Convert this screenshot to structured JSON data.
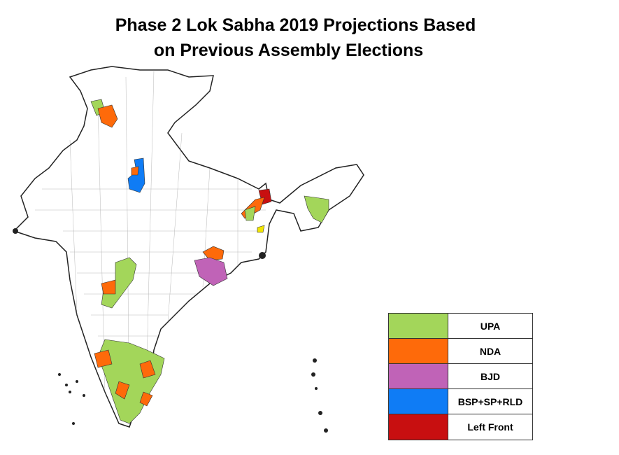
{
  "title": {
    "line1": "Phase 2 Lok Sabha 2019 Projections Based",
    "line2": "on Previous Assembly Elections"
  },
  "legend": [
    {
      "label": "UPA",
      "color": "#a3d65a"
    },
    {
      "label": "NDA",
      "color": "#fe6a0a"
    },
    {
      "label": "BJD",
      "color": "#c063b7"
    },
    {
      "label": "BSP+SP+RLD",
      "color": "#0f7cf5"
    },
    {
      "label": "Left Front",
      "color": "#c80f10"
    }
  ],
  "map": {
    "region": "India",
    "base_color": "#ffffff",
    "border_color": "#333333",
    "other_color": "#f2e600"
  }
}
